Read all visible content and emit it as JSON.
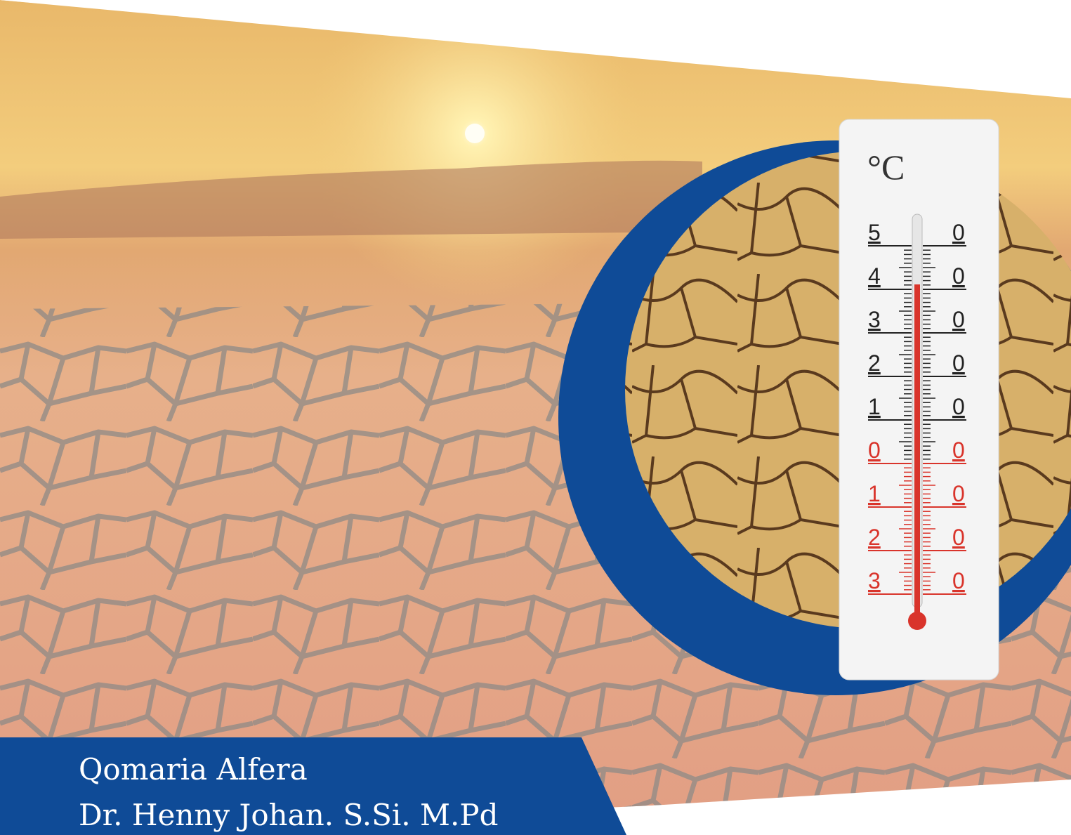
{
  "authors": [
    "Qomaria Alfera",
    "Dr. Henny Johan. S.Si. M.Pd"
  ],
  "thermometer": {
    "unit": "°C",
    "scale_left": [
      "5",
      "4",
      "3",
      "2",
      "1",
      "0",
      "1",
      "2",
      "3"
    ],
    "scale_right": [
      "0",
      "0",
      "0",
      "0",
      "0",
      "0",
      "0",
      "0",
      "0"
    ]
  }
}
